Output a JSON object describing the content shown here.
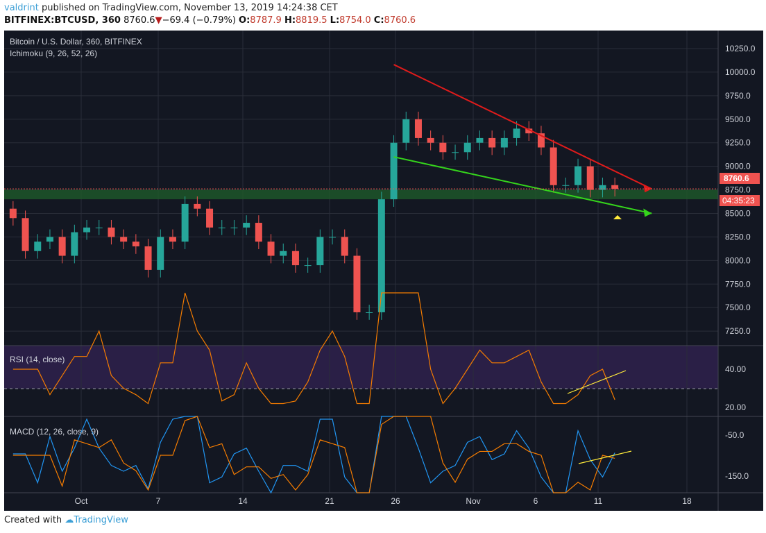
{
  "header": {
    "user": "valdrint",
    "published": "published on TradingView.com, November 13, 2019 14:24:38 CET",
    "symbol": "BITFINEX:BTCUSD, 360",
    "last": "8760.6",
    "change": "−69.4 (−0.79%)",
    "o_label": "O:",
    "o": "8787.9",
    "h_label": "H:",
    "h": "8819.5",
    "l_label": "L:",
    "l": "8754.0",
    "c_label": "C:",
    "c": "8760.6"
  },
  "legend": {
    "title": "Bitcoin / U.S. Dollar, 360, BITFINEX",
    "ichimoku": "Ichimoku (9, 26, 52, 26)",
    "rsi": "RSI (14, close)",
    "macd": "MACD (12, 26, close, 9)"
  },
  "price_axis": [
    "10250.0",
    "10000.0",
    "9750.0",
    "9500.0",
    "9250.0",
    "9000.0",
    "8750.0",
    "8500.0",
    "8250.0",
    "8000.0",
    "7750.0",
    "7500.0",
    "7250.0"
  ],
  "price_label": "8760.6",
  "countdown": "04:35:23",
  "rsi_axis": [
    "40.00",
    "20.00"
  ],
  "macd_axis": [
    "-50.0",
    "-150.0"
  ],
  "time_axis": [
    "Oct",
    "7",
    "14",
    "21",
    "26",
    "Nov",
    "6",
    "11",
    "18"
  ],
  "colors": {
    "bg": "#131722",
    "up": "#26a69a",
    "down": "#ef5350",
    "resistance": "#e01b1b",
    "support": "#35d41c",
    "zone": "#1e5a2a",
    "rsi_band": "#2a1f46",
    "macd_line": "#2196f3",
    "signal_line": "#f57c00"
  },
  "footer": {
    "created": "Created with",
    "brand": "TradingView"
  },
  "chart_data": {
    "type": "candlestick",
    "ylim": [
      7150,
      10350
    ],
    "dates": [
      "Sep 25",
      "Sep 26",
      "Sep 27",
      "Sep 28",
      "Sep 29",
      "Sep 30",
      "Oct 1",
      "Oct 2",
      "Oct 3",
      "Oct 4",
      "Oct 5",
      "Oct 6",
      "Oct 7",
      "Oct 8",
      "Oct 9",
      "Oct 10",
      "Oct 11",
      "Oct 12",
      "Oct 13",
      "Oct 14",
      "Oct 15",
      "Oct 16",
      "Oct 17",
      "Oct 18",
      "Oct 19",
      "Oct 20",
      "Oct 21",
      "Oct 22",
      "Oct 23",
      "Oct 24",
      "Oct 25",
      "Oct 26",
      "Oct 27",
      "Oct 28",
      "Oct 29",
      "Oct 30",
      "Oct 31",
      "Nov 1",
      "Nov 2",
      "Nov 3",
      "Nov 4",
      "Nov 5",
      "Nov 6",
      "Nov 7",
      "Nov 8",
      "Nov 9",
      "Nov 10",
      "Nov 11",
      "Nov 12",
      "Nov 13"
    ],
    "close": [
      8450,
      8100,
      8200,
      8250,
      8050,
      8300,
      8350,
      8350,
      8250,
      8200,
      8150,
      7900,
      8250,
      8200,
      8600,
      8550,
      8350,
      8350,
      8350,
      8400,
      8200,
      8050,
      8100,
      7950,
      7950,
      8250,
      8250,
      8050,
      7450,
      7450,
      8650,
      9250,
      9500,
      9300,
      9250,
      9150,
      9150,
      9250,
      9300,
      9200,
      9300,
      9400,
      9350,
      9200,
      8800,
      8800,
      9000,
      8750,
      8800,
      8760
    ],
    "resistance": [
      [
        "Oct 26",
        10080
      ],
      [
        "Nov 16",
        8760
      ]
    ],
    "support": [
      [
        "Oct 26",
        9100
      ],
      [
        "Nov 16",
        8500
      ]
    ],
    "zone": [
      8650,
      8750
    ]
  }
}
